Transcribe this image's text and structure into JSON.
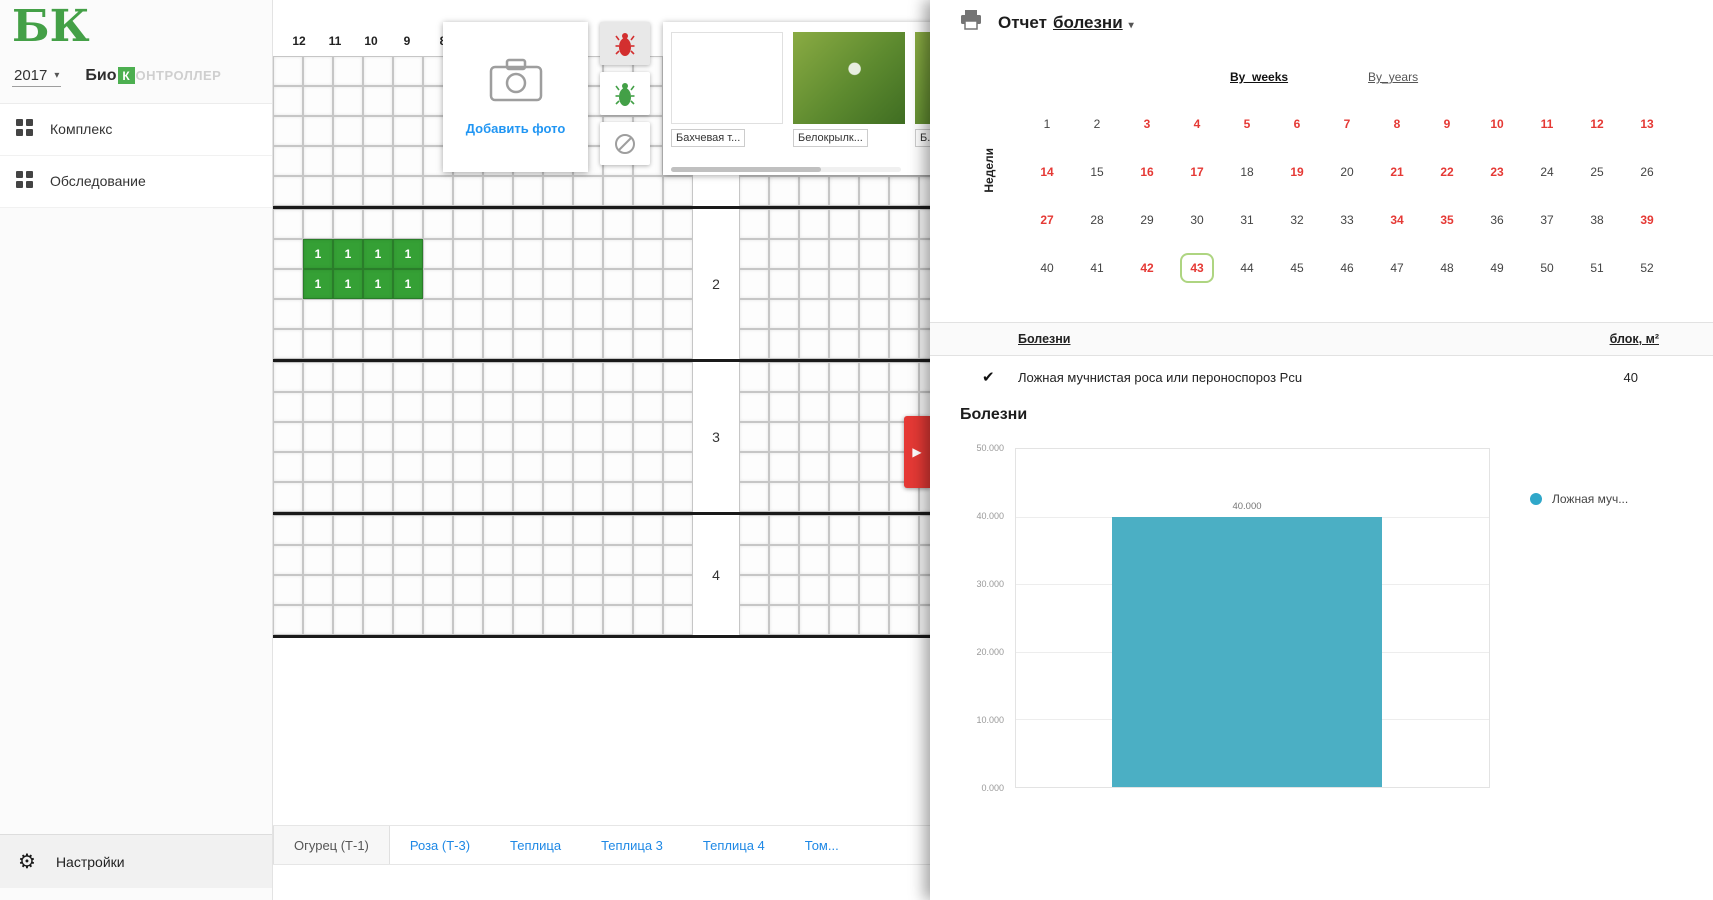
{
  "sidebar": {
    "logo": "БК",
    "year": "2017",
    "brand_bio": "Био",
    "brand_k": "К",
    "brand_rest": "ОНТРОЛЛЕР",
    "menu": [
      {
        "label": "Комплекс"
      },
      {
        "label": "Обследование"
      }
    ],
    "settings_label": "Настройки"
  },
  "map": {
    "column_numbers": [
      "12",
      "11",
      "10",
      "9",
      "8"
    ],
    "add_photo_label": "Добавить фото",
    "photos": [
      {
        "caption": "Бахчевая т...",
        "image": "blank"
      },
      {
        "caption": "Белокрылк...",
        "image": "leaf"
      },
      {
        "caption": "Б...",
        "image": "leaf"
      }
    ],
    "pest_tools": [
      {
        "name": "red-pest",
        "selected": true
      },
      {
        "name": "green-pest",
        "selected": false
      },
      {
        "name": "no-pest",
        "selected": false
      }
    ],
    "sections": [
      {
        "number": "",
        "rows": 5
      },
      {
        "number": "2",
        "rows": 5,
        "marks": {
          "value": "1",
          "row_start": 1,
          "col_start": 1,
          "rows": 2,
          "cols": 4
        }
      },
      {
        "number": "3",
        "rows": 5
      },
      {
        "number": "4",
        "rows": 4
      }
    ],
    "tabs": [
      {
        "label": "Огурец (Т-1)",
        "active": true
      },
      {
        "label": "Роза (Т-3)",
        "active": false
      },
      {
        "label": "Теплица",
        "active": false
      },
      {
        "label": "Теплица 3",
        "active": false
      },
      {
        "label": "Теплица 4",
        "active": false
      },
      {
        "label": "Том...",
        "active": false
      }
    ]
  },
  "report": {
    "title_prefix": "Отчет",
    "title_selector": "болезни",
    "view_tabs": [
      {
        "label": "By_weeks",
        "active": true
      },
      {
        "label": "By_years",
        "active": false
      }
    ],
    "weeks_axis_label": "Недели",
    "weeks": {
      "count": 52,
      "highlighted": [
        3,
        4,
        5,
        6,
        7,
        8,
        9,
        10,
        11,
        12,
        13,
        14,
        16,
        17,
        19,
        21,
        22,
        23,
        27,
        34,
        35,
        39,
        42,
        43
      ],
      "selected": 43
    },
    "table": {
      "header_left": "Болезни",
      "header_right": "блок, м²",
      "rows": [
        {
          "checked": true,
          "name": "Ложная мучнистая роса или пероноспороз Pcu",
          "value": "40"
        }
      ]
    },
    "section_title": "Болезни",
    "chart_data": {
      "type": "bar",
      "categories": [
        "Ложная мучнистая роса или пероноспороз Pcu"
      ],
      "values": [
        40000
      ],
      "bar_labels": [
        "40.000"
      ],
      "ylim": [
        0,
        50000
      ],
      "yticks": [
        "50.000",
        "40.000",
        "30.000",
        "20.000",
        "10.000",
        "0.000"
      ],
      "grid": true,
      "bar_color": "#4bafc4",
      "legend": [
        {
          "label": "Ложная муч...",
          "color": "#2fa7c9"
        }
      ],
      "legend_position": "right"
    }
  },
  "colors": {
    "accent_green": "#45a049",
    "mark_green": "#35a035",
    "alert_red": "#e53935",
    "link_blue": "#1e88e5"
  }
}
